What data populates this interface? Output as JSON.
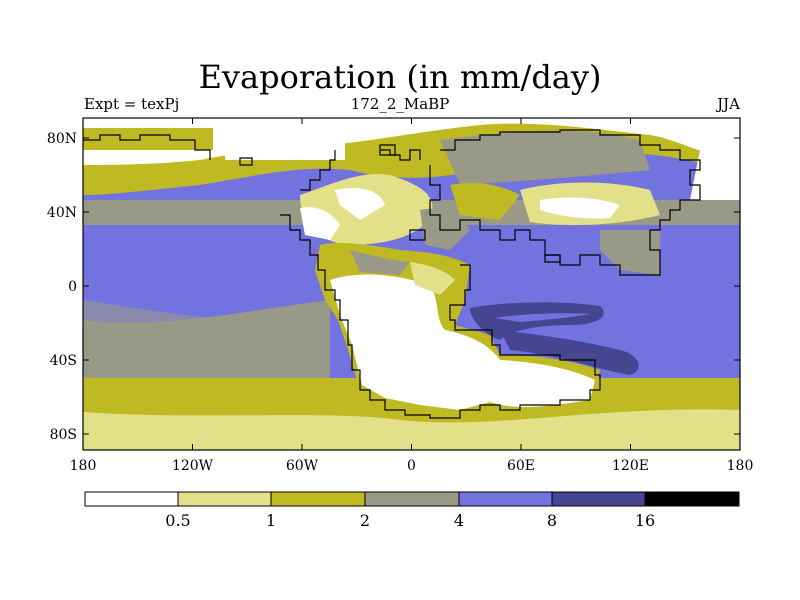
{
  "title": "Evaporation (in mm/day)",
  "left_label": "Expt = texPj",
  "center_label": "172_2_MaBP",
  "right_label": "JJA",
  "x_ticks": [
    "180",
    "120W",
    "60W",
    "0",
    "60E",
    "120E",
    "180"
  ],
  "y_ticks": [
    "80N",
    "40N",
    "0",
    "40S",
    "80S"
  ],
  "colorbar": {
    "levels": [
      "0.5",
      "1",
      "2",
      "4",
      "8",
      "16"
    ],
    "colors": [
      "#ffffff",
      "#e3e08a",
      "#bfba21",
      "#999988",
      "#7373e0",
      "#454592",
      "#000000"
    ]
  },
  "colors": {
    "white": "#ffffff",
    "pale": "#e3e08a",
    "olive": "#bfba21",
    "gray": "#999988",
    "blue": "#7373e0",
    "navy": "#454592"
  }
}
